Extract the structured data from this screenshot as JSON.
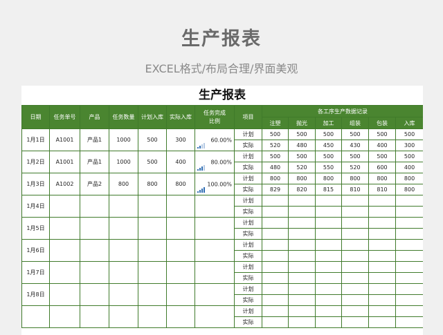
{
  "page": {
    "title": "生产报表",
    "subtitle": "EXCEL格式/布局合理/界面美观"
  },
  "sheet": {
    "title": "生产报表",
    "headers": {
      "date": "日期",
      "task_no": "任务单号",
      "product": "产品",
      "task_qty": "任务数量",
      "plan_in": "计划入库",
      "actual_in": "实际入库",
      "completion_rate": "任务完成比例",
      "item": "项目",
      "process_group": "各工序生产数据记录",
      "processes": [
        "注塑",
        "抛光",
        "加工",
        "组装",
        "包装",
        "入库"
      ]
    },
    "plan_label": "计划",
    "actual_label": "实际",
    "rows": [
      {
        "date": "1月1日",
        "task_no": "A1001",
        "product": "产品1",
        "task_qty": "1000",
        "plan_in": "500",
        "actual_in": "300",
        "rate": "60.00%",
        "rate_value": 0.6,
        "plan": [
          "500",
          "500",
          "500",
          "500",
          "500",
          "500"
        ],
        "actual": [
          "520",
          "480",
          "450",
          "430",
          "400",
          "300"
        ]
      },
      {
        "date": "1月2日",
        "task_no": "A1001",
        "product": "产品1",
        "task_qty": "1000",
        "plan_in": "500",
        "actual_in": "400",
        "rate": "80.00%",
        "rate_value": 0.8,
        "plan": [
          "500",
          "500",
          "500",
          "500",
          "500",
          "500"
        ],
        "actual": [
          "480",
          "520",
          "550",
          "520",
          "600",
          "400"
        ]
      },
      {
        "date": "1月3日",
        "task_no": "A1002",
        "product": "产品2",
        "task_qty": "800",
        "plan_in": "800",
        "actual_in": "800",
        "rate": "100.00%",
        "rate_value": 1.0,
        "plan": [
          "800",
          "800",
          "800",
          "800",
          "800",
          "800"
        ],
        "actual": [
          "829",
          "820",
          "815",
          "810",
          "810",
          "800"
        ]
      },
      {
        "date": "1月4日",
        "task_no": "",
        "product": "",
        "task_qty": "",
        "plan_in": "",
        "actual_in": "",
        "rate": "",
        "rate_value": null,
        "plan": [
          "",
          "",
          "",
          "",
          "",
          ""
        ],
        "actual": [
          "",
          "",
          "",
          "",
          "",
          ""
        ]
      },
      {
        "date": "1月5日",
        "task_no": "",
        "product": "",
        "task_qty": "",
        "plan_in": "",
        "actual_in": "",
        "rate": "",
        "rate_value": null,
        "plan": [
          "",
          "",
          "",
          "",
          "",
          ""
        ],
        "actual": [
          "",
          "",
          "",
          "",
          "",
          ""
        ]
      },
      {
        "date": "1月6日",
        "task_no": "",
        "product": "",
        "task_qty": "",
        "plan_in": "",
        "actual_in": "",
        "rate": "",
        "rate_value": null,
        "plan": [
          "",
          "",
          "",
          "",
          "",
          ""
        ],
        "actual": [
          "",
          "",
          "",
          "",
          "",
          ""
        ]
      },
      {
        "date": "1月7日",
        "task_no": "",
        "product": "",
        "task_qty": "",
        "plan_in": "",
        "actual_in": "",
        "rate": "",
        "rate_value": null,
        "plan": [
          "",
          "",
          "",
          "",
          "",
          ""
        ],
        "actual": [
          "",
          "",
          "",
          "",
          "",
          ""
        ]
      },
      {
        "date": "1月8日",
        "task_no": "",
        "product": "",
        "task_qty": "",
        "plan_in": "",
        "actual_in": "",
        "rate": "",
        "rate_value": null,
        "plan": [
          "",
          "",
          "",
          "",
          "",
          ""
        ],
        "actual": [
          "",
          "",
          "",
          "",
          "",
          ""
        ]
      },
      {
        "date": "",
        "task_no": "",
        "product": "",
        "task_qty": "",
        "plan_in": "",
        "actual_in": "",
        "rate": "",
        "rate_value": null,
        "plan": [
          "",
          "",
          "",
          "",
          "",
          ""
        ],
        "actual": [
          "",
          "",
          "",
          "",
          "",
          ""
        ]
      }
    ]
  },
  "colors": {
    "header_bg": "#4a8530",
    "border": "#3f7a2a",
    "bar_on": "#2f6db3",
    "bar_off": "#b5c9e3"
  }
}
